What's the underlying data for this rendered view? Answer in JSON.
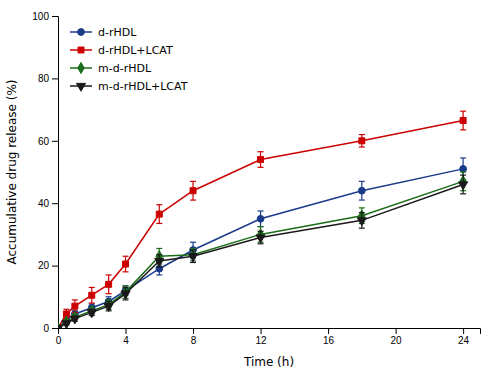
{
  "chart_data": {
    "type": "line",
    "xlabel": "Time (h)",
    "ylabel": "Accumulative drug release (%)",
    "x": [
      0,
      0.5,
      1,
      2,
      3,
      4,
      6,
      8,
      12,
      18,
      24
    ],
    "xlim": [
      0,
      25
    ],
    "ylim": [
      0,
      100
    ],
    "xticks": [
      0,
      4,
      8,
      12,
      16,
      20,
      24
    ],
    "yticks": [
      0,
      20,
      40,
      60,
      80,
      100
    ],
    "legend": "upper left",
    "grid": false,
    "series": [
      {
        "name": "d-rHDL",
        "color": "#1a3a8a",
        "marker": "circle",
        "line_style": "solid",
        "values": [
          0,
          2.5,
          4.5,
          6.5,
          8.5,
          12.0,
          19.0,
          25.0,
          35.0,
          44.0,
          51.0
        ],
        "errors": [
          0,
          0.8,
          1.0,
          1.2,
          1.5,
          1.5,
          2.0,
          2.5,
          2.5,
          3.0,
          3.5
        ]
      },
      {
        "name": "d-rHDL+LCAT",
        "color": "#cc0000",
        "marker": "square",
        "line_style": "solid",
        "values": [
          0,
          4.5,
          7.0,
          10.5,
          14.0,
          20.5,
          36.5,
          44.0,
          54.0,
          60.0,
          66.5
        ],
        "errors": [
          0,
          1.5,
          2.0,
          2.5,
          3.0,
          2.5,
          3.0,
          3.0,
          2.5,
          2.0,
          3.0
        ]
      },
      {
        "name": "m-d-rHDL",
        "color": "#1a6e1a",
        "marker": "diamond",
        "line_style": "solid",
        "values": [
          0,
          2.0,
          3.5,
          5.5,
          7.5,
          11.5,
          23.0,
          23.5,
          30.0,
          36.0,
          47.0
        ],
        "errors": [
          0,
          0.5,
          0.8,
          1.0,
          1.5,
          2.0,
          2.5,
          2.0,
          2.5,
          2.5,
          3.0
        ]
      },
      {
        "name": "m-d-rHDL+LCAT",
        "color": "#1a1a1a",
        "marker": "triangle-down",
        "line_style": "solid",
        "values": [
          0,
          1.5,
          3.0,
          5.0,
          7.0,
          11.0,
          21.5,
          23.0,
          29.0,
          34.5,
          46.0
        ],
        "errors": [
          0,
          0.5,
          0.8,
          1.0,
          1.5,
          2.0,
          2.0,
          2.0,
          2.0,
          2.5,
          3.0
        ]
      }
    ]
  }
}
